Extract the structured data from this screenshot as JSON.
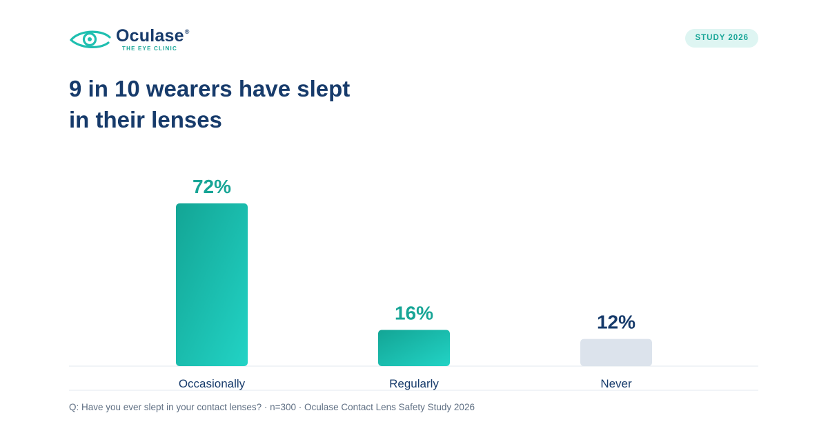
{
  "brand": {
    "name": "Oculase",
    "registered_mark": "®",
    "tagline": "THE EYE CLINIC"
  },
  "badge": "STUDY 2026",
  "headline": {
    "line1": "9 in 10 wearers have slept",
    "line2": "in their lenses"
  },
  "colors": {
    "navy": "#173b6b",
    "teal": "#17a596",
    "teal_light": "#22d3c5",
    "grey_bar": "#dce3ec"
  },
  "chart_data": {
    "type": "bar",
    "categories": [
      "Occasionally",
      "Regularly",
      "Never"
    ],
    "values": [
      72,
      16,
      12
    ],
    "value_labels": [
      "72%",
      "16%",
      "12%"
    ],
    "unit": "%",
    "ylim": [
      0,
      72
    ],
    "grid": false,
    "legend": "none",
    "bar_styles": [
      "teal",
      "teal",
      "grey"
    ]
  },
  "footnote": "Q: Have you ever slept in your contact lenses? · n=300 · Oculase Contact Lens Safety Study 2026"
}
